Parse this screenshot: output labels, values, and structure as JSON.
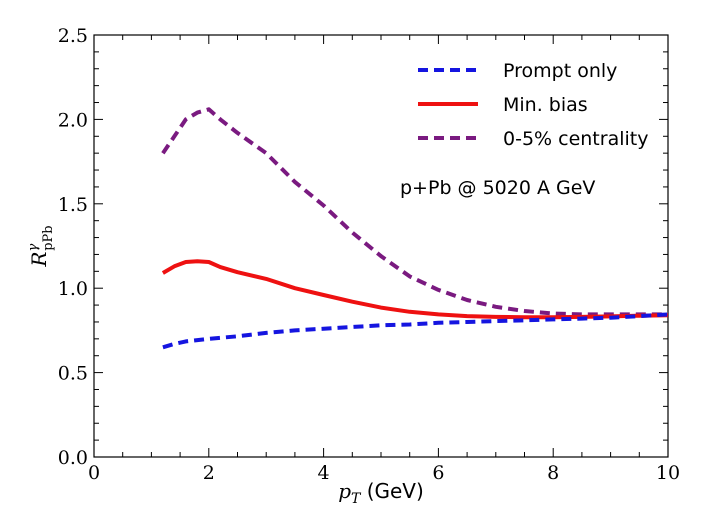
{
  "chart_data": {
    "type": "line",
    "title": "",
    "xlabel": "p_T (GeV)",
    "xlabel_main": "p",
    "xlabel_sub": "T",
    "xlabel_unit": " (GeV)",
    "ylabel": "R^γ_pPb",
    "ylabel_main": "R",
    "ylabel_sup": "γ",
    "ylabel_sub": "pPb",
    "xlim": [
      0,
      10
    ],
    "ylim": [
      0,
      2.5
    ],
    "x_ticks": [
      0,
      2,
      4,
      6,
      8,
      10
    ],
    "x_tick_labels": [
      "0",
      "2",
      "4",
      "6",
      "8",
      "10"
    ],
    "y_ticks": [
      0,
      0.5,
      1.0,
      1.5,
      2.0,
      2.5
    ],
    "y_tick_labels": [
      "0.0",
      "0.5",
      "1.0",
      "1.5",
      "2.0",
      "2.5"
    ],
    "grid": false,
    "legend_position": "top-right",
    "annotation": "p+Pb @ 5020 A GeV",
    "series": [
      {
        "name": "Prompt only",
        "color": "#1515e0",
        "style": "dashed",
        "x": [
          1.2,
          1.4,
          1.6,
          2.0,
          2.5,
          3.0,
          3.5,
          4.0,
          4.5,
          5.0,
          5.5,
          6.0,
          6.5,
          7.0,
          7.5,
          8.0,
          8.5,
          9.0,
          9.5,
          10.0
        ],
        "y": [
          0.65,
          0.67,
          0.685,
          0.7,
          0.715,
          0.735,
          0.75,
          0.76,
          0.77,
          0.78,
          0.785,
          0.795,
          0.8,
          0.805,
          0.81,
          0.815,
          0.82,
          0.825,
          0.835,
          0.845
        ]
      },
      {
        "name": "Min. bias",
        "color": "#ee1111",
        "style": "solid",
        "x": [
          1.2,
          1.4,
          1.6,
          1.8,
          2.0,
          2.2,
          2.5,
          3.0,
          3.5,
          4.0,
          4.5,
          5.0,
          5.5,
          6.0,
          6.5,
          7.0,
          7.5,
          8.0,
          8.5,
          9.0,
          9.5,
          10.0
        ],
        "y": [
          1.09,
          1.13,
          1.155,
          1.16,
          1.155,
          1.125,
          1.095,
          1.055,
          1.0,
          0.96,
          0.92,
          0.885,
          0.86,
          0.845,
          0.835,
          0.83,
          0.828,
          0.828,
          0.83,
          0.833,
          0.837,
          0.84
        ]
      },
      {
        "name": "0-5% centrality",
        "color": "#7a1a80",
        "style": "dashed",
        "x": [
          1.2,
          1.4,
          1.6,
          1.8,
          2.0,
          2.2,
          2.5,
          3.0,
          3.5,
          4.0,
          4.5,
          5.0,
          5.5,
          6.0,
          6.5,
          7.0,
          7.5,
          8.0,
          8.5,
          9.0,
          9.5,
          10.0
        ],
        "y": [
          1.8,
          1.9,
          2.0,
          2.04,
          2.06,
          2.0,
          1.92,
          1.8,
          1.63,
          1.49,
          1.33,
          1.19,
          1.07,
          0.99,
          0.93,
          0.89,
          0.865,
          0.85,
          0.845,
          0.845,
          0.845,
          0.845
        ]
      }
    ]
  }
}
